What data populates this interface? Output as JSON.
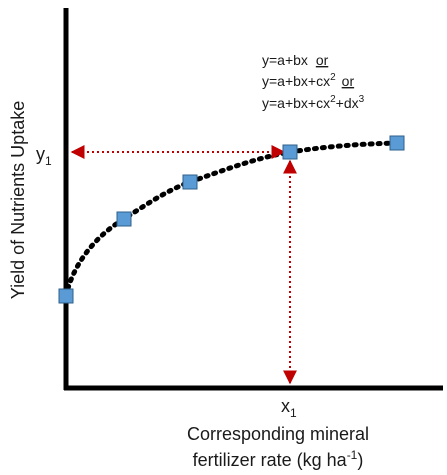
{
  "diagram": {
    "y_axis_label": "Yield of Nutrients Uptake",
    "x_axis_label_line1": "Corresponding mineral",
    "x_axis_label_line2_main": "fertilizer rate (kg ha",
    "x_axis_label_line2_sup": "-1",
    "x_axis_label_line2_end": ")",
    "y_marker": "y",
    "y_marker_sub": "1",
    "x_marker": "x",
    "x_marker_sub": "1",
    "equations": [
      {
        "prefix": "y=a+bx ",
        "conj": "or"
      },
      {
        "prefix": "y=a+bx+cx",
        "sup": "2",
        "conj": "or"
      },
      {
        "prefix": "y=a+bx+cx",
        "sup": "2",
        "suffix": "+dx",
        "sup2": "3"
      }
    ],
    "colors": {
      "axis": "#000000",
      "curve": "#000000",
      "point_fill": "#5b9bd5",
      "point_stroke": "#2e5f8a",
      "guide_arrow": "#c00000"
    },
    "points_count_note": "",
    "highlight_point_index": 3
  }
}
